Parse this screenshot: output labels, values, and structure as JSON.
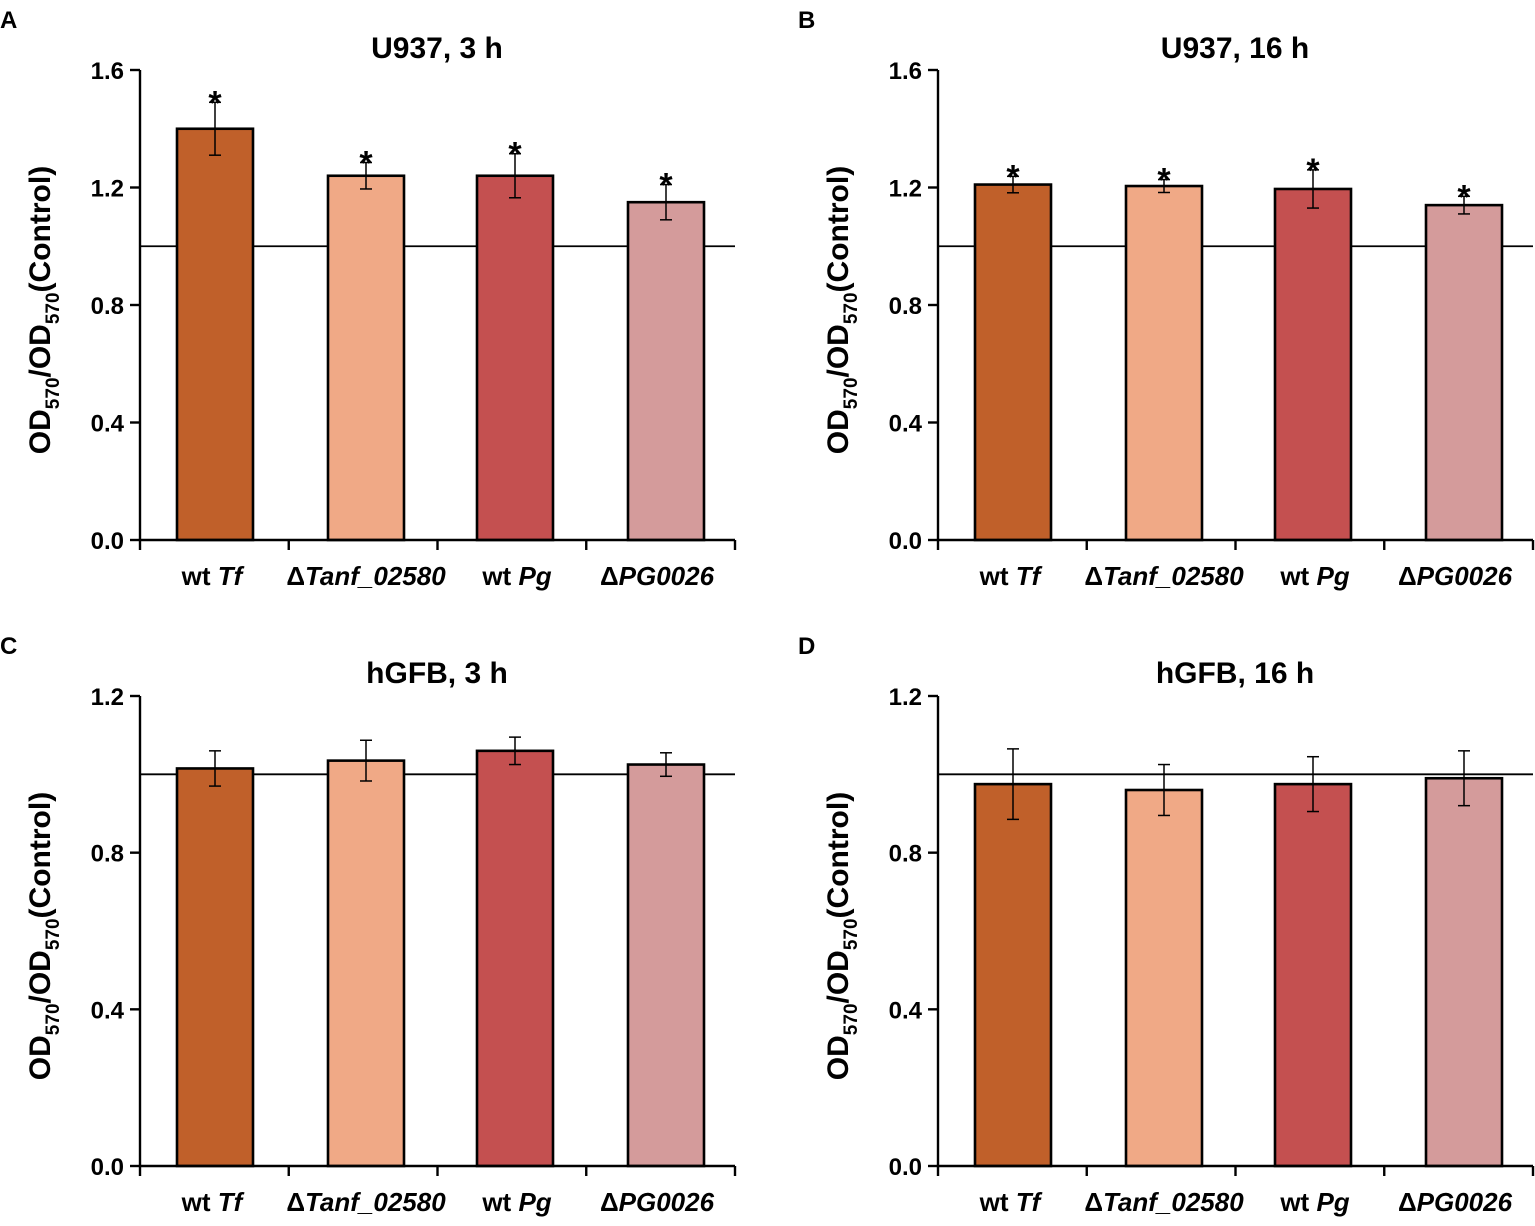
{
  "ylabel": {
    "main": "OD",
    "sub1": "570",
    "sep": "/OD",
    "sub2": "570",
    "tail": "(Control)"
  },
  "categories": [
    {
      "prefix": "wt ",
      "italic": "Tf"
    },
    {
      "prefix": "Δ",
      "italic": "Tanf_02580"
    },
    {
      "prefix": "wt ",
      "italic": "Pg"
    },
    {
      "prefix": "Δ",
      "italic": "PG0026"
    }
  ],
  "colors": [
    "#c0602a",
    "#f0a986",
    "#c45050",
    "#d49b9b"
  ],
  "significance_marker": "*",
  "chart_data": [
    {
      "panel": "A",
      "type": "bar",
      "title": "U937, 3 h",
      "ylim": [
        0,
        1.6
      ],
      "yticks": [
        "0.0",
        "0.4",
        "0.8",
        "1.2",
        "1.6"
      ],
      "reference_line": 1.0,
      "values": [
        1.4,
        1.24,
        1.24,
        1.15
      ],
      "errors": [
        0.09,
        0.045,
        0.075,
        0.06
      ],
      "significant": [
        true,
        true,
        true,
        true
      ]
    },
    {
      "panel": "B",
      "type": "bar",
      "title": "U937, 16 h",
      "ylim": [
        0,
        1.6
      ],
      "yticks": [
        "0.0",
        "0.4",
        "0.8",
        "1.2",
        "1.6"
      ],
      "reference_line": 1.0,
      "values": [
        1.21,
        1.205,
        1.195,
        1.14
      ],
      "errors": [
        0.028,
        0.022,
        0.065,
        0.03
      ],
      "significant": [
        true,
        true,
        true,
        true
      ]
    },
    {
      "panel": "C",
      "type": "bar",
      "title": "hGFB, 3 h",
      "ylim": [
        0,
        1.2
      ],
      "yticks": [
        "0.0",
        "0.4",
        "0.8",
        "1.2"
      ],
      "reference_line": 1.0,
      "values": [
        1.015,
        1.035,
        1.06,
        1.025
      ],
      "errors": [
        0.045,
        0.052,
        0.035,
        0.03
      ],
      "significant": [
        false,
        false,
        false,
        false
      ]
    },
    {
      "panel": "D",
      "type": "bar",
      "title": "hGFB, 16 h",
      "ylim": [
        0,
        1.2
      ],
      "yticks": [
        "0.0",
        "0.4",
        "0.8",
        "1.2"
      ],
      "reference_line": 1.0,
      "values": [
        0.975,
        0.96,
        0.975,
        0.99
      ],
      "errors": [
        0.09,
        0.065,
        0.07,
        0.07
      ],
      "significant": [
        false,
        false,
        false,
        false
      ]
    }
  ]
}
